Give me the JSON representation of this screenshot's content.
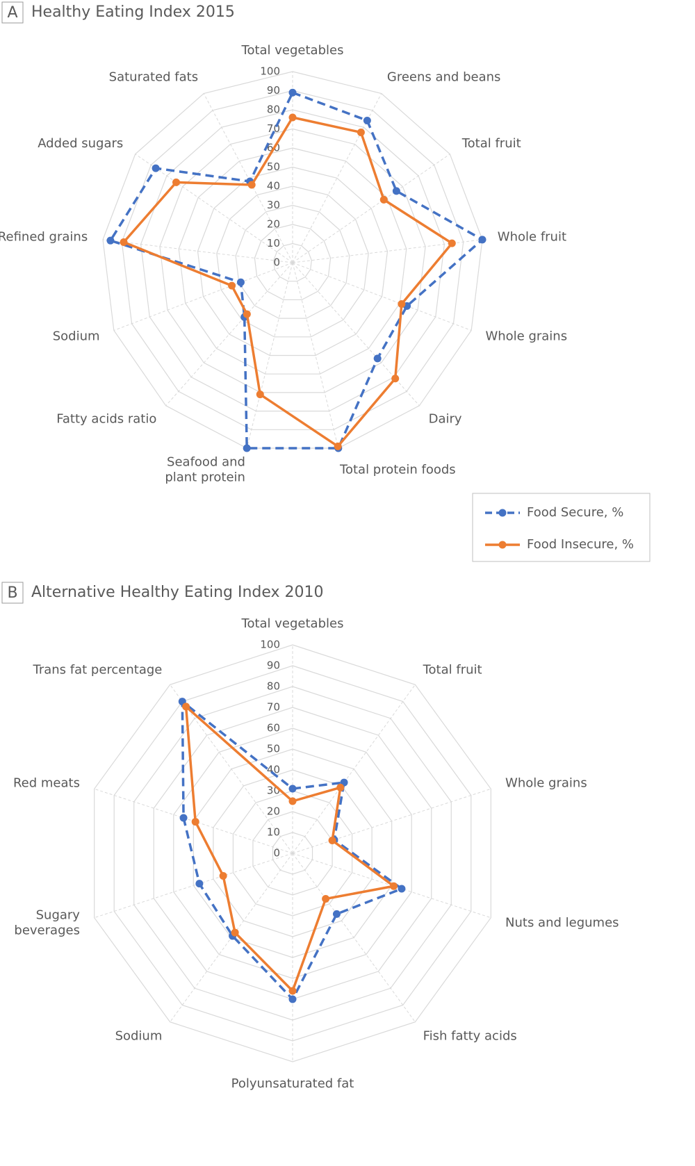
{
  "chart_data": [
    {
      "type": "radar",
      "panel": "A",
      "title": "Healthy Eating Index 2015",
      "categories": [
        "Total vegetables",
        "Greens and beans",
        "Total fruit",
        "Whole fruit",
        "Whole grains",
        "Dairy",
        "Total protein foods",
        "Seafood and\nplant protein",
        "Fatty acids ratio",
        "Sodium",
        "Refined grains",
        "Added sugars",
        "Saturated fats"
      ],
      "series": [
        {
          "name": "Food Secure, %",
          "color": "#4472c4",
          "dashed": true,
          "values": [
            89,
            84,
            66,
            100,
            64,
            67,
            100,
            100,
            38,
            29,
            96,
            87,
            48
          ]
        },
        {
          "name": "Food Insecure, %",
          "color": "#ed7d31",
          "dashed": false,
          "values": [
            76,
            77,
            58,
            84,
            61,
            81,
            99,
            71,
            36,
            34,
            89,
            74,
            46
          ]
        }
      ],
      "ylim": [
        0,
        100
      ],
      "yticks": [
        0,
        10,
        20,
        30,
        40,
        50,
        60,
        70,
        80,
        90,
        100
      ],
      "legend": "bottom-right"
    },
    {
      "type": "radar",
      "panel": "B",
      "title": "Alternative Healthy Eating Index 2010",
      "categories": [
        "Total vegetables",
        "Total fruit",
        "Whole grains",
        "Nuts and legumes",
        "Fish fatty acids",
        "Polyunsaturated fat",
        "Sodium",
        "Sugary\nbeverages",
        "Red meats",
        "Trans fat percentage"
      ],
      "series": [
        {
          "color": "#4472c4",
          "dashed": true,
          "values": [
            31,
            42,
            21,
            55,
            36,
            70,
            49,
            47,
            55,
            90
          ]
        },
        {
          "color": "#ed7d31",
          "dashed": false,
          "values": [
            25,
            39,
            20,
            51,
            27,
            66,
            47,
            35,
            49,
            87
          ]
        }
      ],
      "ylim": [
        0,
        100
      ],
      "yticks": [
        0,
        10,
        20,
        30,
        40,
        50,
        60,
        70,
        80,
        90,
        100
      ]
    }
  ]
}
